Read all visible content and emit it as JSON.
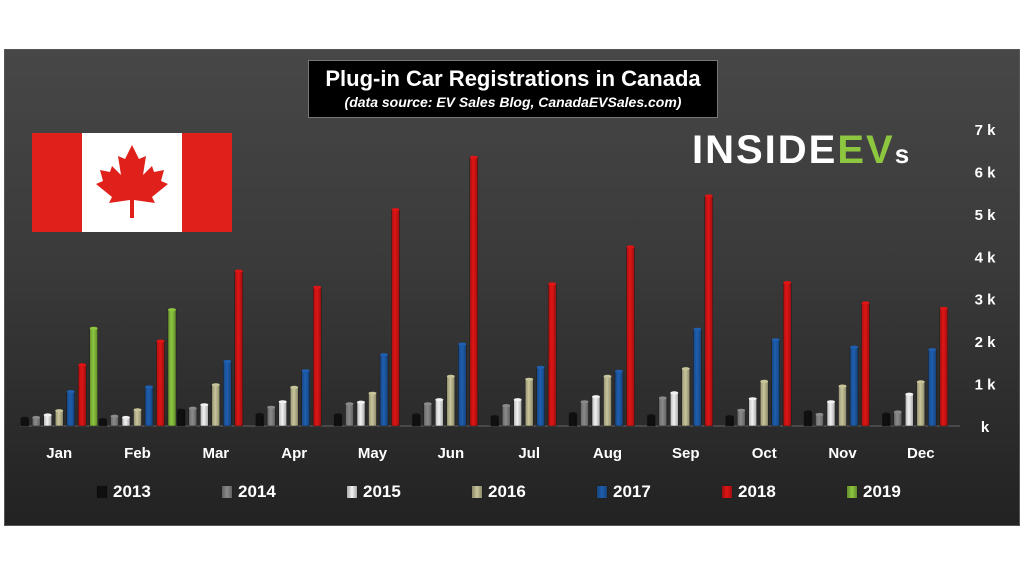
{
  "title": "Plug-in Car Registrations in Canada",
  "subtitle": "(data source: EV Sales Blog, CanadaEVSales.com)",
  "brand": {
    "text_white": "INSIDE",
    "text_green": "EV",
    "text_small": "s"
  },
  "colors": {
    "2013": "#111111",
    "2014": "#8a8a8a",
    "2015": "#f2f2f2",
    "2016": "#c8c49a",
    "2017": "#1f5fb0",
    "2018": "#e01515",
    "2019": "#8dc63f",
    "flag_red": "#e0201a",
    "text": "#ffffff"
  },
  "chart_data": {
    "type": "bar",
    "title": "Plug-in Car Registrations in Canada",
    "subtitle": "(data source: EV Sales Blog, CanadaEVSales.com)",
    "categories": [
      "Jan",
      "Feb",
      "Mar",
      "Apr",
      "May",
      "Jun",
      "Jul",
      "Aug",
      "Sep",
      "Oct",
      "Nov",
      "Dec"
    ],
    "y_tick_labels": [
      "k",
      "1 k",
      "2 k",
      "3 k",
      "4 k",
      "5 k",
      "6 k",
      "7 k"
    ],
    "y_ticks": [
      0,
      1000,
      2000,
      3000,
      4000,
      5000,
      6000,
      7000
    ],
    "ylim": [
      0,
      7000
    ],
    "y_axis_side": "right",
    "legend_position": "bottom",
    "series": [
      {
        "name": "2013",
        "values": [
          180,
          150,
          370,
          270,
          260,
          260,
          220,
          290,
          240,
          220,
          330,
          280
        ]
      },
      {
        "name": "2014",
        "values": [
          200,
          230,
          420,
          440,
          520,
          520,
          480,
          570,
          660,
          370,
          270,
          330
        ]
      },
      {
        "name": "2015",
        "values": [
          260,
          200,
          500,
          570,
          560,
          620,
          620,
          690,
          780,
          640,
          570,
          750
        ]
      },
      {
        "name": "2016",
        "values": [
          360,
          380,
          970,
          910,
          770,
          1170,
          1100,
          1170,
          1350,
          1050,
          940,
          1040
        ]
      },
      {
        "name": "2017",
        "values": [
          810,
          920,
          1520,
          1300,
          1680,
          1930,
          1380,
          1290,
          2280,
          2030,
          1860,
          1800
        ]
      },
      {
        "name": "2018",
        "values": [
          1440,
          2000,
          3650,
          3270,
          5100,
          6330,
          3350,
          4220,
          5420,
          3380,
          2900,
          2770
        ]
      },
      {
        "name": "2019",
        "values": [
          2300,
          2740,
          null,
          null,
          null,
          null,
          null,
          null,
          null,
          null,
          null,
          null
        ]
      }
    ]
  }
}
